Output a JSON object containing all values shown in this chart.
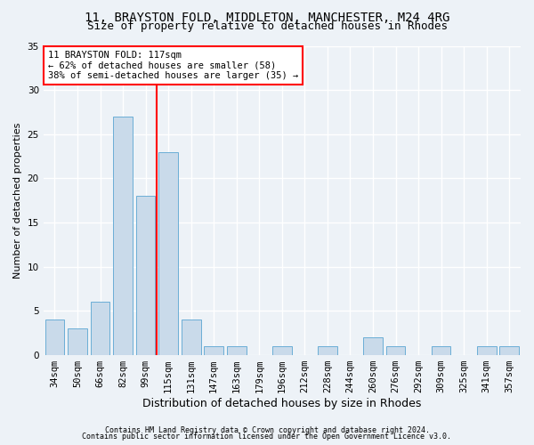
{
  "title1": "11, BRAYSTON FOLD, MIDDLETON, MANCHESTER, M24 4RG",
  "title2": "Size of property relative to detached houses in Rhodes",
  "xlabel": "Distribution of detached houses by size in Rhodes",
  "ylabel": "Number of detached properties",
  "footnote1": "Contains HM Land Registry data © Crown copyright and database right 2024.",
  "footnote2": "Contains public sector information licensed under the Open Government Licence v3.0.",
  "categories": [
    "34sqm",
    "50sqm",
    "66sqm",
    "82sqm",
    "99sqm",
    "115sqm",
    "131sqm",
    "147sqm",
    "163sqm",
    "179sqm",
    "196sqm",
    "212sqm",
    "228sqm",
    "244sqm",
    "260sqm",
    "276sqm",
    "292sqm",
    "309sqm",
    "325sqm",
    "341sqm",
    "357sqm"
  ],
  "values": [
    4,
    3,
    6,
    27,
    18,
    23,
    4,
    1,
    1,
    0,
    1,
    0,
    1,
    0,
    2,
    1,
    0,
    1,
    0,
    1,
    1
  ],
  "bar_color": "#c9daea",
  "bar_edge_color": "#6baed6",
  "highlight_line_index": 5,
  "highlight_line_color": "red",
  "annotation_text": "11 BRAYSTON FOLD: 117sqm\n← 62% of detached houses are smaller (58)\n38% of semi-detached houses are larger (35) →",
  "annotation_box_color": "white",
  "annotation_box_edge_color": "red",
  "ylim": [
    0,
    35
  ],
  "yticks": [
    0,
    5,
    10,
    15,
    20,
    25,
    30,
    35
  ],
  "background_color": "#edf2f7",
  "grid_color": "white",
  "title1_fontsize": 10,
  "title2_fontsize": 9,
  "xlabel_fontsize": 9,
  "ylabel_fontsize": 8,
  "tick_fontsize": 7.5,
  "annotation_fontsize": 7.5,
  "footnote_fontsize": 6
}
